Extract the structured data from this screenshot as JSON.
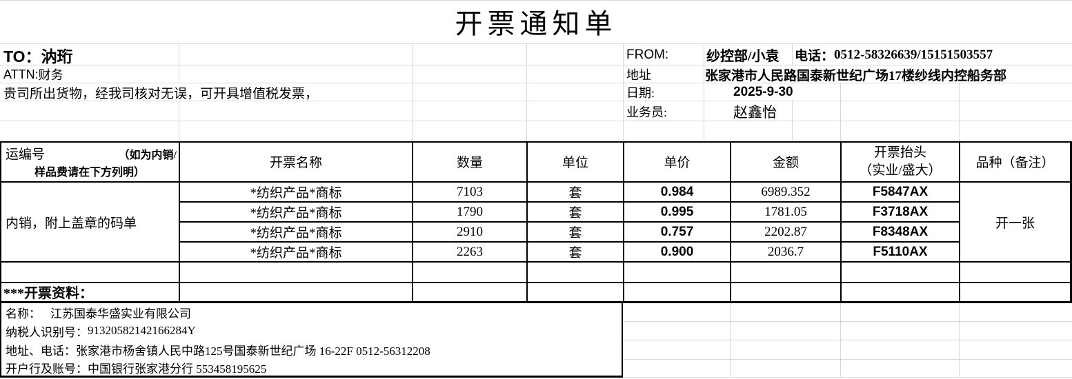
{
  "title": "开票通知单",
  "recipient": {
    "to_label": "TO：",
    "to_name": "汭珩",
    "attn_label": "ATTN:",
    "attn_name": "财务",
    "note": "贵司所出货物，经我司核对无误，可开具增值税发票，"
  },
  "sender": {
    "from_label": "FROM:",
    "department": "纱控部/小袁",
    "phone_label": "电话：",
    "phone_value": "0512-58326639/15151503557",
    "address_label": "地址",
    "address_value": "张家港市人民路国泰新世纪广场17楼纱线内控船务部",
    "date_label": "日期:",
    "date_value": "2025-9-30",
    "agent_label": "业务员:",
    "agent_value": "赵鑫怡"
  },
  "invoice_table": {
    "headers": {
      "shipment_no": "运编号",
      "shipment_note1": "（如为内销/",
      "shipment_note2": "样品费请在下方列明）",
      "name": "开票名称",
      "qty": "数量",
      "unit": "单位",
      "price": "单价",
      "amount": "金额",
      "head1": "开票抬头",
      "head2": "（实业/盛大）",
      "variety": "品种（备注）"
    },
    "shipment_note": "内销，附上盖章的码单",
    "variety_note": "开一张",
    "rows": [
      {
        "name": "*纺织产品*商标",
        "qty": "7103",
        "unit": "套",
        "price": "0.984",
        "amount": "6989.352",
        "invoice_head": "F5847AX"
      },
      {
        "name": "*纺织产品*商标",
        "qty": "1790",
        "unit": "套",
        "price": "0.995",
        "amount": "1781.05",
        "invoice_head": "F3718AX"
      },
      {
        "name": "*纺织产品*商标",
        "qty": "2910",
        "unit": "套",
        "price": "0.757",
        "amount": "2202.87",
        "invoice_head": "F8348AX"
      },
      {
        "name": "*纺织产品*商标",
        "qty": "2263",
        "unit": "套",
        "price": "0.900",
        "amount": "2036.7",
        "invoice_head": "F5110AX"
      }
    ]
  },
  "invoice_info": {
    "heading": "***开票资料：",
    "company_label": "名称：",
    "company_value": "江苏国泰华盛实业有限公司",
    "tax_label": "纳税人识别号：",
    "tax_value": "91320582142166284Y",
    "addr_label": "地址、电话：",
    "addr_value": "张家港市杨舍镇人民中路125号国泰新世纪广场 16-22F 0512-56312208",
    "bank_label": "开户行及账号：",
    "bank_value": "中国银行张家港分行 553458195625"
  },
  "colors": {
    "border": "#000000",
    "gridline": "#d7d7d7",
    "background": "#ffffff"
  }
}
